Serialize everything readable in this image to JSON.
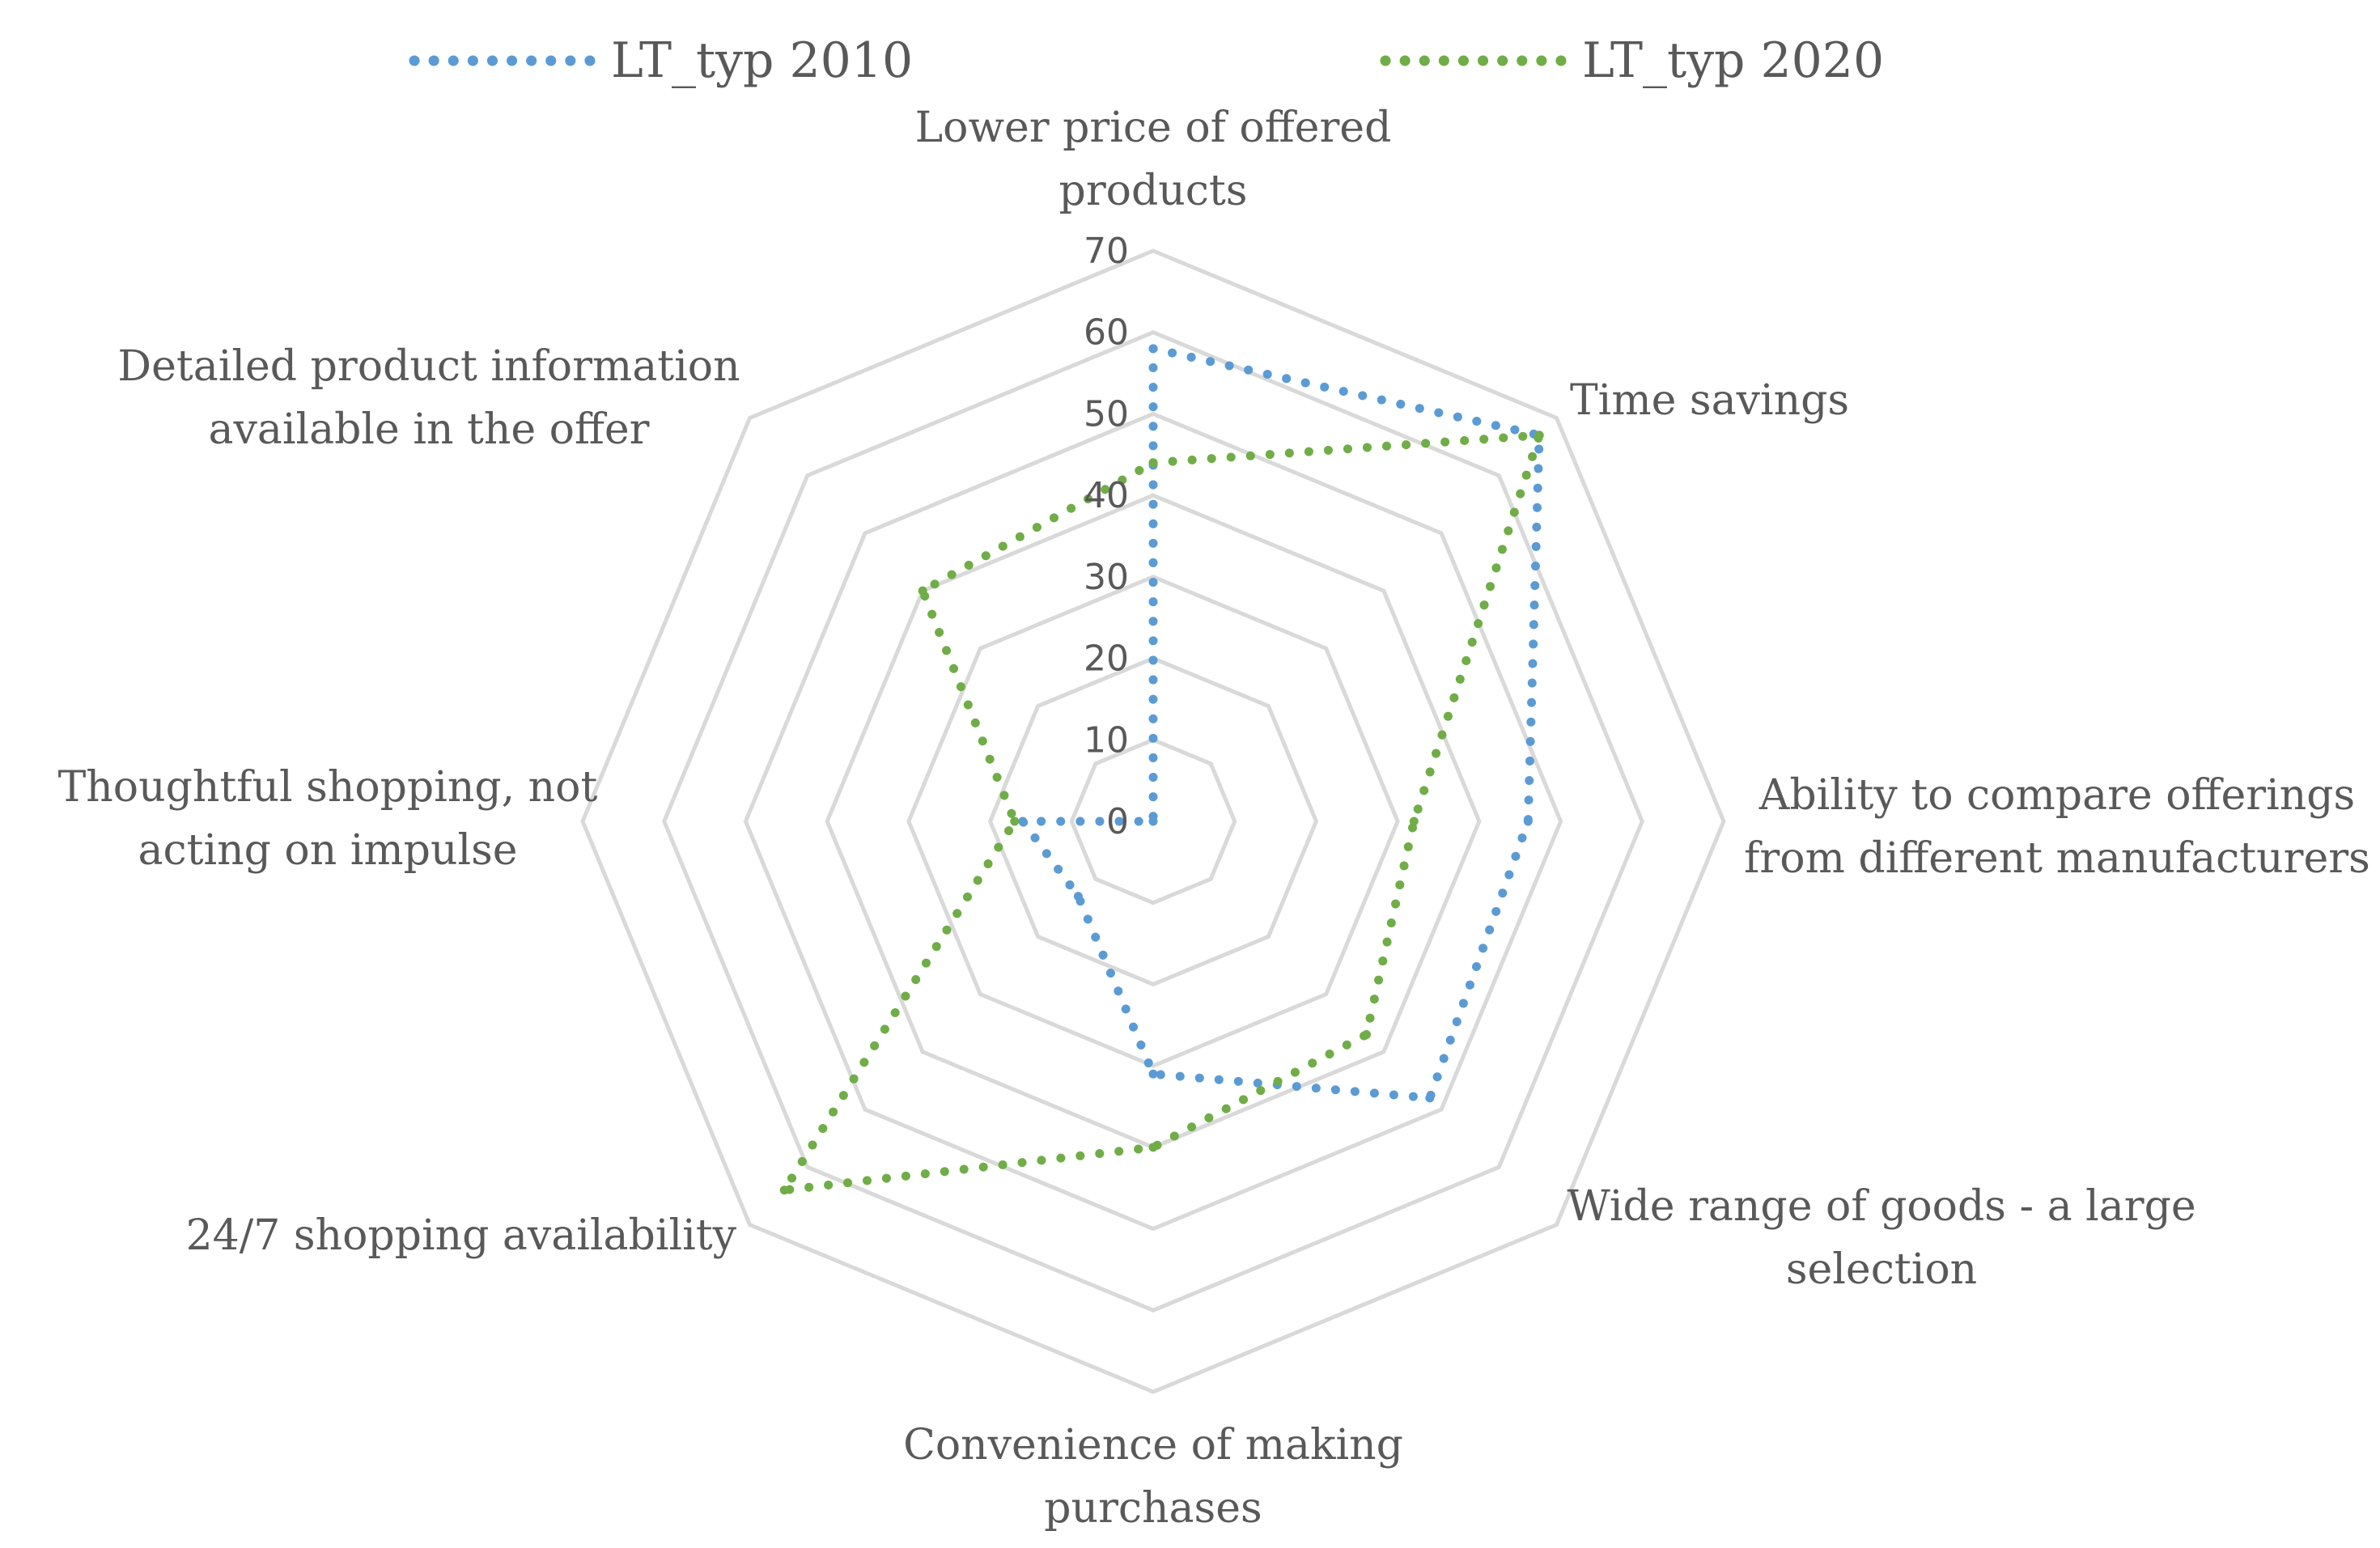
{
  "chart_data": {
    "type": "radar",
    "title": "",
    "categories": [
      "Lower price of offered products",
      "Time savings",
      "Ability to compare offerings from different manufacturers",
      "Wide range of goods - a large selection",
      "Convenience of making purchases",
      "24/7 shopping availability",
      "Thoughtful shopping, not acting on impulse",
      "Detailed product information available in the offer"
    ],
    "category_lines": [
      [
        "Lower price of offered",
        "products"
      ],
      [
        "Time savings"
      ],
      [
        "Ability to compare offerings",
        "from different manufacturers"
      ],
      [
        "Wide range of goods - a large",
        "selection"
      ],
      [
        "Convenience of making",
        "purchases"
      ],
      [
        "24/7 shopping availability"
      ],
      [
        "Thoughtful shopping, not",
        "acting on impulse"
      ],
      [
        "Detailed product information",
        "available in the offer"
      ]
    ],
    "series": [
      {
        "name": "LT_typ 2010",
        "color": "#5b9bd5",
        "values": [
          58,
          67,
          46,
          48,
          31,
          13,
          16,
          0
        ]
      },
      {
        "name": "LT_typ 2020",
        "color": "#70ad47",
        "values": [
          44,
          67,
          32,
          37,
          40,
          64,
          17,
          40
        ]
      }
    ],
    "rlim": [
      0,
      70
    ],
    "ticks": [
      0,
      10,
      20,
      30,
      40,
      50,
      60,
      70
    ],
    "tick_labels": [
      "0",
      "10",
      "20",
      "30",
      "40",
      "50",
      "60",
      "70"
    ],
    "grid_color": "#d9d9d9",
    "legend_position": "top"
  }
}
